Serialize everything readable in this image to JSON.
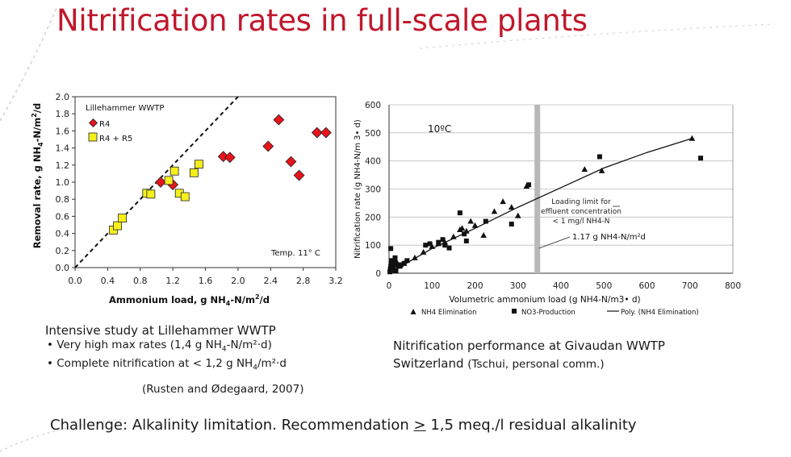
{
  "title": "Nitrification rates in full-scale plants",
  "left_caption": {
    "heading": "Intensive study at Lillehammer WWTP",
    "bullet1_prefix": "• Very high max rates (1,4 g NH",
    "bullet1_suffix": "-N/m²·d)",
    "bullet2_prefix": "• Complete nitrification at < 1,2 g NH",
    "bullet2_suffix": "/m²·d",
    "citation": "(Rusten and Ødegaard, 2007)"
  },
  "right_caption": {
    "line1": "Nitrification performance at Givaudan WWTP",
    "line2": "Switzerland",
    "line2_small": "(Tschui, personal comm.)"
  },
  "bottom": {
    "prefix": "Challenge: Alkalinity limitation. Recommendation ",
    "symbol": ">",
    "suffix": " 1,5 meq./l residual alkalinity"
  },
  "colors": {
    "title": "#c0172b",
    "r4": "#e8141c",
    "r4r5": "#f6ef1c",
    "limit_bar": "#b8b8b8"
  },
  "chart_data": [
    {
      "type": "scatter",
      "title": "",
      "plot_label": "Lillehammer WWTP",
      "annotation": "Temp. 11° C",
      "xlabel": "Ammonium load, g NH4-N/m2/d",
      "ylabel": "Removal rate, g NH4-N/m2/d",
      "xlim": [
        0,
        3.2
      ],
      "ylim": [
        0,
        2.0
      ],
      "x_ticks": [
        "0.0",
        "0.4",
        "0.8",
        "1.2",
        "1.6",
        "2.0",
        "2.4",
        "2.8",
        "3.2"
      ],
      "y_ticks": [
        "0.0",
        "0.2",
        "0.4",
        "0.6",
        "0.8",
        "1.0",
        "1.2",
        "1.4",
        "1.6",
        "1.8",
        "2.0"
      ],
      "reference_line": "1:1 dashed",
      "legend_position": "top-left",
      "series": [
        {
          "name": "R4",
          "marker": "diamond",
          "points": [
            [
              1.05,
              1.0
            ],
            [
              1.2,
              0.97
            ],
            [
              1.82,
              1.3
            ],
            [
              1.9,
              1.29
            ],
            [
              2.37,
              1.42
            ],
            [
              2.5,
              1.73
            ],
            [
              2.65,
              1.24
            ],
            [
              2.75,
              1.08
            ],
            [
              2.97,
              1.58
            ],
            [
              3.08,
              1.58
            ]
          ]
        },
        {
          "name": "R4 + R5",
          "marker": "square",
          "points": [
            [
              0.47,
              0.44
            ],
            [
              0.52,
              0.49
            ],
            [
              0.58,
              0.58
            ],
            [
              0.88,
              0.87
            ],
            [
              0.93,
              0.86
            ],
            [
              1.15,
              1.02
            ],
            [
              1.22,
              1.13
            ],
            [
              1.28,
              0.87
            ],
            [
              1.35,
              0.83
            ],
            [
              1.46,
              1.11
            ],
            [
              1.52,
              1.21
            ]
          ]
        }
      ]
    },
    {
      "type": "scatter",
      "title": "",
      "plot_label": "10ºC",
      "xlabel": "Volumetric ammonium load (g NH4-N/m3• d)",
      "ylabel": "Nitrification rate (g NH4-N/m 3• d)",
      "xlim": [
        0,
        800
      ],
      "ylim": [
        0,
        600
      ],
      "x_ticks": [
        "0",
        "100",
        "200",
        "300",
        "400",
        "500",
        "600",
        "700",
        "800"
      ],
      "y_ticks": [
        "0",
        "100",
        "200",
        "300",
        "400",
        "500",
        "600"
      ],
      "limit_x": 345,
      "limit_annotation": [
        "Loading limit for",
        "effluent concentration",
        "< 1 mg/l NH4-N"
      ],
      "rate_annotation": "1.17 g NH4-N/m²d",
      "legend_position": "bottom",
      "legend": [
        "NH4 Elimination",
        "NO3-Production",
        "Poly. (NH4 Elimination)"
      ],
      "series": [
        {
          "name": "NH4 Elimination",
          "marker": "triangle",
          "points": [
            [
              5,
              20
            ],
            [
              8,
              10
            ],
            [
              12,
              30
            ],
            [
              18,
              40
            ],
            [
              25,
              25
            ],
            [
              35,
              35
            ],
            [
              60,
              55
            ],
            [
              80,
              75
            ],
            [
              100,
              95
            ],
            [
              115,
              105
            ],
            [
              130,
              110
            ],
            [
              150,
              130
            ],
            [
              165,
              155
            ],
            [
              170,
              160
            ],
            [
              180,
              150
            ],
            [
              190,
              185
            ],
            [
              200,
              170
            ],
            [
              220,
              135
            ],
            [
              245,
              220
            ],
            [
              265,
              255
            ],
            [
              285,
              235
            ],
            [
              300,
              205
            ],
            [
              320,
              310
            ],
            [
              455,
              370
            ],
            [
              495,
              365
            ],
            [
              705,
              480
            ]
          ]
        },
        {
          "name": "NO3-Production",
          "marker": "square",
          "points": [
            [
              2,
              5
            ],
            [
              3,
              15
            ],
            [
              4,
              25
            ],
            [
              5,
              35
            ],
            [
              6,
              45
            ],
            [
              4,
              88
            ],
            [
              8,
              12
            ],
            [
              10,
              20
            ],
            [
              12,
              40
            ],
            [
              14,
              55
            ],
            [
              16,
              8
            ],
            [
              18,
              30
            ],
            [
              22,
              25
            ],
            [
              28,
              30
            ],
            [
              35,
              35
            ],
            [
              42,
              45
            ],
            [
              85,
              100
            ],
            [
              95,
              105
            ],
            [
              115,
              110
            ],
            [
              125,
              120
            ],
            [
              130,
              100
            ],
            [
              140,
              90
            ],
            [
              165,
              215
            ],
            [
              175,
              140
            ],
            [
              180,
              115
            ],
            [
              225,
              185
            ],
            [
              285,
              175
            ],
            [
              325,
              315
            ],
            [
              490,
              415
            ],
            [
              725,
              410
            ]
          ]
        },
        {
          "name": "Poly. (NH4 Elimination)",
          "type": "line",
          "points": [
            [
              0,
              0
            ],
            [
              100,
              88
            ],
            [
              200,
              160
            ],
            [
              300,
              235
            ],
            [
              400,
              305
            ],
            [
              500,
              375
            ],
            [
              600,
              430
            ],
            [
              705,
              480
            ]
          ]
        }
      ]
    }
  ]
}
